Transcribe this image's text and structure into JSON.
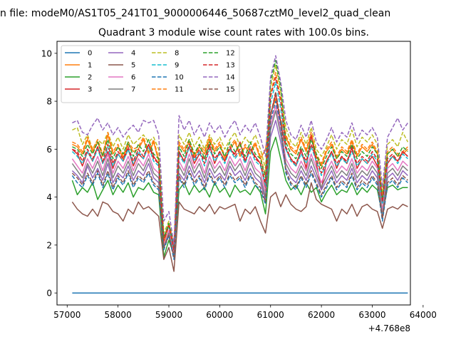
{
  "suptitle": "n file: modeM0/AS1T05_241T01_9000006446_50687cztM0_level2_quad_clean",
  "chart_data": {
    "type": "line",
    "title": "Quadrant 3 module wise count rates with 100.0s bins.",
    "xlabel": "",
    "ylabel": "",
    "x_offset_label": "+4.768e8",
    "xlim": [
      56800,
      63750
    ],
    "ylim": [
      -0.5,
      10.5
    ],
    "x_ticks": [
      57000,
      58000,
      59000,
      60000,
      61000,
      62000,
      63000,
      64000
    ],
    "x_tick_labels": [
      "57000",
      "58000",
      "59000",
      "60000",
      "61000",
      "62000",
      "63000",
      "64000"
    ],
    "y_ticks": [
      0,
      2,
      4,
      6,
      8,
      10
    ],
    "y_tick_labels": [
      "0",
      "2",
      "4",
      "6",
      "8",
      "10"
    ],
    "grid": false,
    "legend_placement": "top-left",
    "x": [
      57100,
      57200,
      57300,
      57400,
      57500,
      57600,
      57700,
      57800,
      57900,
      58000,
      58100,
      58200,
      58300,
      58400,
      58500,
      58600,
      58700,
      58800,
      58900,
      59000,
      59100,
      59200,
      59300,
      59400,
      59500,
      59600,
      59700,
      59800,
      59900,
      60000,
      60100,
      60200,
      60300,
      60400,
      60500,
      60600,
      60700,
      60800,
      60900,
      61000,
      61100,
      61200,
      61300,
      61400,
      61500,
      61600,
      61700,
      61800,
      61900,
      62000,
      62100,
      62200,
      62300,
      62400,
      62500,
      62600,
      62700,
      62800,
      62900,
      63000,
      63100,
      63200,
      63300,
      63400,
      63500,
      63600,
      63700
    ],
    "series": [
      {
        "name": "0",
        "color": "#1f77b4",
        "dash": false,
        "values": [
          0,
          0,
          0,
          0,
          0,
          0,
          0,
          0,
          0,
          0,
          0,
          0,
          0,
          0,
          0,
          0,
          0,
          0,
          0,
          0,
          0,
          0,
          0,
          0,
          0,
          0,
          0,
          0,
          0,
          0,
          0,
          0,
          0,
          0,
          0,
          0,
          0,
          0,
          0,
          0,
          0,
          0,
          0,
          0,
          0,
          0,
          0,
          0,
          0,
          0,
          0,
          0,
          0,
          0,
          0,
          0,
          0,
          0,
          0,
          0,
          0,
          0,
          0,
          0,
          0,
          0,
          0
        ]
      },
      {
        "name": "1",
        "color": "#ff7f0e",
        "dash": false,
        "values": [
          6.2,
          6.1,
          5.8,
          6.4,
          5.9,
          6.3,
          5.7,
          6.6,
          5.8,
          6.1,
          5.6,
          6.2,
          5.9,
          6.0,
          6.4,
          5.8,
          6.3,
          5.5,
          2.1,
          2.8,
          1.9,
          6.2,
          5.9,
          6.3,
          5.7,
          6.1,
          5.8,
          6.4,
          5.9,
          6.2,
          5.6,
          6.0,
          6.3,
          5.7,
          6.1,
          5.8,
          6.2,
          5.6,
          6.0,
          7.5,
          8.1,
          7.2,
          6.5,
          6.0,
          5.8,
          6.4,
          5.9,
          6.6,
          5.7,
          5.3,
          5.9,
          6.2,
          5.6,
          6.0,
          5.8,
          6.3,
          5.7,
          6.1,
          5.9,
          6.2,
          5.8,
          3.9,
          5.8,
          6.0,
          5.7,
          5.8,
          6.0
        ]
      },
      {
        "name": "2",
        "color": "#2ca02c",
        "dash": false,
        "values": [
          4.7,
          4.1,
          4.4,
          4.2,
          4.6,
          3.9,
          4.3,
          4.7,
          4.1,
          4.5,
          4.2,
          4.6,
          4.0,
          4.4,
          4.3,
          4.6,
          4.2,
          4.1,
          1.5,
          2.2,
          1.6,
          4.3,
          4.6,
          4.1,
          4.5,
          4.2,
          4.4,
          4.0,
          4.6,
          4.2,
          4.4,
          4.0,
          4.5,
          4.2,
          4.3,
          4.1,
          4.5,
          4.2,
          3.3,
          5.9,
          6.5,
          5.6,
          4.7,
          4.3,
          4.5,
          4.1,
          4.6,
          4.2,
          4.4,
          3.8,
          4.2,
          4.5,
          4.1,
          4.3,
          4.2,
          4.6,
          4.1,
          4.4,
          4.2,
          4.5,
          4.3,
          3.3,
          4.4,
          4.5,
          4.3,
          4.4,
          4.4
        ]
      },
      {
        "name": "3",
        "color": "#d62728",
        "dash": false,
        "values": [
          6.0,
          5.8,
          5.3,
          5.9,
          5.5,
          6.1,
          5.4,
          5.9,
          5.2,
          5.8,
          5.5,
          6.0,
          5.3,
          5.8,
          5.6,
          6.2,
          5.7,
          5.4,
          2.3,
          2.9,
          1.7,
          5.9,
          5.5,
          6.1,
          5.4,
          5.8,
          5.6,
          6.2,
          5.4,
          5.9,
          5.5,
          6.0,
          5.8,
          6.3,
          5.5,
          6.0,
          5.7,
          5.4,
          4.4,
          7.4,
          8.3,
          7.1,
          6.0,
          5.6,
          5.3,
          6.0,
          5.2,
          6.6,
          5.4,
          4.3,
          5.5,
          5.9,
          5.2,
          5.7,
          5.4,
          6.1,
          5.2,
          5.6,
          5.4,
          5.7,
          5.3,
          3.4,
          5.4,
          5.7,
          5.5,
          5.9,
          5.7
        ]
      },
      {
        "name": "4",
        "color": "#9467bd",
        "dash": false,
        "values": [
          5.1,
          4.9,
          4.6,
          5.3,
          4.8,
          5.2,
          4.7,
          5.4,
          4.6,
          5.0,
          4.8,
          5.3,
          4.7,
          5.1,
          4.9,
          5.4,
          4.8,
          4.6,
          1.9,
          2.5,
          1.5,
          5.0,
          4.7,
          5.3,
          4.8,
          5.1,
          4.6,
          5.2,
          4.8,
          5.0,
          4.7,
          5.3,
          4.9,
          5.1,
          4.7,
          5.2,
          4.8,
          4.6,
          3.9,
          6.5,
          7.2,
          6.3,
          5.2,
          4.8,
          4.6,
          5.1,
          4.7,
          5.3,
          4.8,
          4.3,
          4.7,
          5.1,
          4.6,
          4.9,
          4.7,
          5.2,
          4.6,
          4.9,
          4.7,
          5.1,
          4.8,
          3.1,
          4.8,
          5.0,
          4.7,
          5.1,
          4.9
        ]
      },
      {
        "name": "5",
        "color": "#8c564b",
        "dash": false,
        "values": [
          3.8,
          3.5,
          3.3,
          3.2,
          3.5,
          3.2,
          3.8,
          3.7,
          3.4,
          3.3,
          3.0,
          3.5,
          3.3,
          3.8,
          3.5,
          3.6,
          3.4,
          3.2,
          1.4,
          1.9,
          0.9,
          3.8,
          3.5,
          3.4,
          3.3,
          3.6,
          3.4,
          3.7,
          3.3,
          3.6,
          3.5,
          3.6,
          3.7,
          3.0,
          3.5,
          3.3,
          3.6,
          3.0,
          2.5,
          4.0,
          4.2,
          3.6,
          4.1,
          3.7,
          3.5,
          3.4,
          3.6,
          4.6,
          3.9,
          3.7,
          3.6,
          3.5,
          3.0,
          3.5,
          3.3,
          3.7,
          3.2,
          3.6,
          3.7,
          3.5,
          3.4,
          2.7,
          3.5,
          3.6,
          3.5,
          3.7,
          3.6
        ]
      },
      {
        "name": "6",
        "color": "#e377c2",
        "dash": false,
        "values": [
          5.6,
          5.3,
          5.0,
          5.6,
          5.2,
          5.7,
          5.1,
          5.8,
          5.0,
          5.5,
          5.2,
          5.7,
          5.1,
          5.6,
          5.3,
          5.8,
          5.2,
          5.0,
          2.0,
          2.6,
          1.6,
          5.5,
          5.1,
          5.8,
          5.2,
          5.6,
          5.0,
          5.7,
          5.2,
          5.5,
          5.1,
          5.7,
          5.3,
          5.6,
          5.1,
          5.7,
          5.2,
          5.0,
          4.2,
          7.0,
          7.8,
          6.8,
          5.6,
          5.2,
          5.0,
          5.5,
          5.1,
          5.8,
          5.2,
          4.6,
          5.1,
          5.5,
          5.0,
          5.3,
          5.1,
          5.6,
          5.0,
          5.3,
          5.1,
          5.5,
          5.2,
          3.4,
          5.2,
          5.4,
          5.1,
          5.5,
          5.3
        ]
      },
      {
        "name": "7",
        "color": "#7f7f7f",
        "dash": false,
        "values": [
          5.4,
          5.1,
          4.8,
          5.4,
          5.0,
          5.5,
          4.9,
          5.6,
          4.8,
          5.3,
          5.0,
          5.5,
          4.9,
          5.4,
          5.1,
          5.6,
          5.0,
          4.8,
          1.9,
          2.5,
          1.5,
          5.3,
          4.9,
          5.6,
          5.0,
          5.4,
          4.8,
          5.5,
          5.0,
          5.3,
          4.9,
          5.5,
          5.1,
          5.4,
          4.9,
          5.5,
          5.0,
          4.8,
          4.0,
          6.8,
          7.6,
          6.6,
          5.4,
          5.0,
          4.8,
          5.3,
          4.9,
          5.6,
          5.0,
          4.4,
          4.9,
          5.3,
          4.8,
          5.1,
          4.9,
          5.4,
          4.8,
          5.1,
          4.9,
          5.3,
          5.0,
          3.2,
          5.0,
          5.2,
          4.9,
          5.3,
          5.1
        ]
      },
      {
        "name": "8",
        "color": "#bcbd22",
        "dash": true,
        "values": [
          6.8,
          6.9,
          6.2,
          6.6,
          6.0,
          6.4,
          6.2,
          6.7,
          6.1,
          6.5,
          6.0,
          6.6,
          6.2,
          6.4,
          6.6,
          6.3,
          6.5,
          6.0,
          2.5,
          3.0,
          2.0,
          6.6,
          6.2,
          6.7,
          6.1,
          6.5,
          6.0,
          6.6,
          6.2,
          6.5,
          6.0,
          6.4,
          6.7,
          6.1,
          6.5,
          6.2,
          6.6,
          6.0,
          5.2,
          8.6,
          9.5,
          8.4,
          6.9,
          6.3,
          6.1,
          6.7,
          6.2,
          6.9,
          6.0,
          5.7,
          6.1,
          6.6,
          6.0,
          6.4,
          6.2,
          6.8,
          6.1,
          6.5,
          6.3,
          6.6,
          6.2,
          4.1,
          6.2,
          6.4,
          6.1,
          6.7,
          6.3
        ]
      },
      {
        "name": "9",
        "color": "#17becf",
        "dash": true,
        "values": [
          5.9,
          5.7,
          5.4,
          5.9,
          5.5,
          6.0,
          5.4,
          6.1,
          5.3,
          5.8,
          5.5,
          6.0,
          5.4,
          5.9,
          5.6,
          6.1,
          5.5,
          5.3,
          2.2,
          2.8,
          1.8,
          5.8,
          5.4,
          6.1,
          5.5,
          5.9,
          5.3,
          6.0,
          5.5,
          5.8,
          5.4,
          6.0,
          5.6,
          5.9,
          5.4,
          6.0,
          5.5,
          5.3,
          4.5,
          7.9,
          8.8,
          7.7,
          6.0,
          5.5,
          5.3,
          5.8,
          5.4,
          6.1,
          5.5,
          4.9,
          5.4,
          5.8,
          5.3,
          5.6,
          5.4,
          5.9,
          5.3,
          5.6,
          5.4,
          5.8,
          5.5,
          3.7,
          5.5,
          5.7,
          5.4,
          5.8,
          5.6
        ]
      },
      {
        "name": "10",
        "color": "#1f77b4",
        "dash": true,
        "values": [
          4.9,
          4.6,
          4.4,
          4.9,
          4.5,
          5.0,
          4.4,
          5.0,
          4.3,
          4.8,
          4.5,
          5.0,
          4.4,
          4.8,
          4.6,
          5.0,
          4.5,
          4.3,
          1.8,
          2.4,
          1.4,
          4.8,
          4.4,
          5.0,
          4.5,
          4.8,
          4.3,
          4.9,
          4.5,
          4.8,
          4.4,
          4.9,
          4.6,
          4.8,
          4.4,
          4.9,
          4.5,
          4.3,
          3.7,
          7.2,
          8.0,
          7.0,
          5.0,
          4.5,
          4.3,
          4.8,
          4.4,
          5.0,
          4.5,
          4.0,
          4.4,
          4.8,
          4.3,
          4.6,
          4.4,
          4.9,
          4.3,
          4.6,
          4.4,
          4.8,
          4.5,
          3.0,
          4.5,
          4.7,
          4.4,
          4.8,
          4.6
        ]
      },
      {
        "name": "11",
        "color": "#ff7f0e",
        "dash": true,
        "values": [
          6.3,
          6.2,
          5.9,
          6.5,
          6.0,
          6.4,
          5.8,
          6.7,
          5.9,
          6.2,
          5.7,
          6.3,
          6.0,
          6.1,
          6.5,
          5.9,
          6.4,
          5.6,
          2.2,
          2.9,
          2.0,
          6.3,
          6.0,
          6.4,
          5.8,
          6.2,
          5.9,
          6.5,
          6.0,
          6.3,
          5.7,
          6.1,
          6.4,
          5.8,
          6.2,
          5.9,
          6.3,
          5.7,
          4.9,
          8.3,
          9.2,
          8.1,
          6.6,
          6.1,
          5.9,
          6.5,
          6.0,
          6.7,
          5.8,
          5.4,
          6.0,
          6.3,
          5.7,
          6.1,
          5.9,
          6.4,
          5.8,
          6.2,
          6.0,
          6.3,
          5.9,
          4.0,
          5.9,
          6.1,
          5.8,
          5.9,
          6.1
        ]
      },
      {
        "name": "12",
        "color": "#2ca02c",
        "dash": true,
        "values": [
          6.1,
          6.0,
          5.7,
          6.2,
          5.8,
          6.3,
          5.7,
          6.4,
          5.6,
          6.1,
          5.8,
          6.3,
          5.7,
          6.2,
          5.9,
          6.4,
          5.8,
          5.6,
          2.3,
          2.9,
          1.9,
          6.1,
          5.7,
          6.4,
          5.8,
          6.2,
          5.6,
          6.3,
          5.8,
          6.1,
          5.7,
          6.3,
          5.9,
          6.2,
          5.7,
          6.3,
          5.8,
          5.6,
          4.8,
          8.8,
          9.7,
          8.6,
          6.3,
          5.8,
          5.6,
          6.1,
          5.7,
          6.4,
          5.8,
          5.2,
          5.7,
          6.1,
          5.6,
          5.9,
          5.7,
          6.2,
          5.6,
          5.9,
          5.7,
          6.1,
          5.8,
          3.9,
          5.8,
          6.0,
          5.7,
          6.1,
          5.9
        ]
      },
      {
        "name": "13",
        "color": "#d62728",
        "dash": true,
        "values": [
          6.0,
          5.9,
          5.5,
          6.0,
          5.6,
          6.1,
          5.5,
          6.2,
          5.4,
          5.9,
          5.6,
          6.1,
          5.5,
          6.0,
          5.7,
          6.2,
          5.6,
          5.4,
          2.2,
          2.8,
          1.8,
          5.9,
          5.5,
          6.2,
          5.6,
          6.0,
          5.4,
          6.1,
          5.6,
          5.9,
          5.5,
          6.1,
          5.7,
          6.0,
          5.5,
          6.1,
          5.6,
          5.4,
          4.6,
          8.2,
          9.0,
          8.0,
          6.1,
          5.6,
          5.4,
          5.9,
          5.5,
          6.2,
          5.6,
          5.0,
          5.5,
          5.9,
          5.4,
          5.7,
          5.5,
          6.0,
          5.4,
          5.7,
          5.5,
          5.9,
          5.6,
          3.8,
          5.6,
          5.8,
          5.5,
          5.9,
          5.7
        ]
      },
      {
        "name": "14",
        "color": "#9467bd",
        "dash": true,
        "values": [
          7.1,
          7.2,
          6.7,
          6.6,
          7.0,
          7.3,
          6.8,
          7.1,
          6.6,
          6.9,
          6.5,
          6.8,
          7.0,
          6.7,
          7.2,
          7.1,
          7.2,
          6.6,
          3.0,
          3.4,
          2.0,
          7.4,
          6.8,
          7.2,
          6.6,
          7.0,
          6.5,
          7.1,
          6.7,
          7.0,
          6.5,
          6.9,
          7.2,
          6.6,
          7.0,
          6.7,
          7.1,
          6.5,
          5.7,
          9.0,
          9.9,
          8.8,
          7.2,
          6.6,
          6.4,
          7.0,
          6.5,
          7.2,
          6.3,
          6.0,
          6.4,
          6.9,
          6.3,
          6.7,
          6.5,
          7.1,
          6.4,
          6.8,
          6.6,
          6.9,
          6.5,
          4.4,
          6.5,
          6.9,
          7.3,
          6.8,
          7.1
        ]
      },
      {
        "name": "15",
        "color": "#8c564b",
        "dash": true,
        "values": [
          5.0,
          4.8,
          4.5,
          5.0,
          4.6,
          5.1,
          4.5,
          5.1,
          4.4,
          4.9,
          4.6,
          5.1,
          4.5,
          4.9,
          4.7,
          5.1,
          4.6,
          4.4,
          1.9,
          2.4,
          1.5,
          4.9,
          4.5,
          5.1,
          4.6,
          4.9,
          4.4,
          5.0,
          4.6,
          4.9,
          4.5,
          5.0,
          4.7,
          4.9,
          4.5,
          5.0,
          4.6,
          4.4,
          3.8,
          7.4,
          8.4,
          7.2,
          5.1,
          4.6,
          4.4,
          4.9,
          4.5,
          5.1,
          4.6,
          4.1,
          4.5,
          4.9,
          4.4,
          4.7,
          4.5,
          5.0,
          4.4,
          4.7,
          4.5,
          4.9,
          4.6,
          3.1,
          4.6,
          4.8,
          4.5,
          4.9,
          4.7
        ]
      }
    ]
  }
}
